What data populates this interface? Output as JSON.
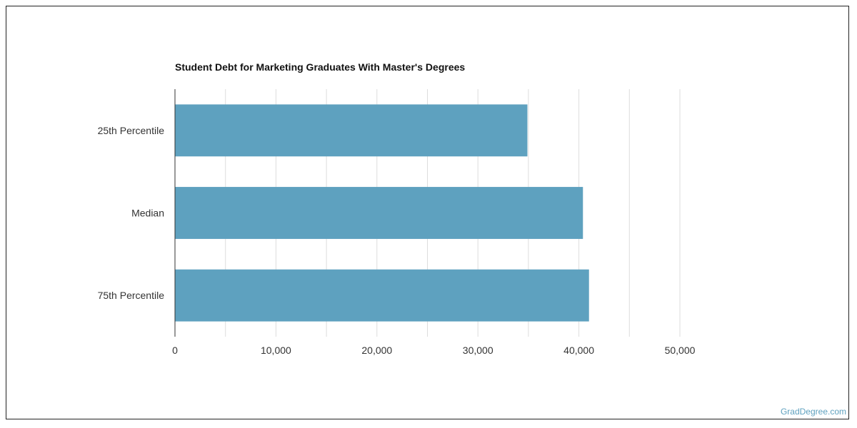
{
  "chart_data": {
    "type": "bar",
    "orientation": "horizontal",
    "title": "Student Debt for Marketing Graduates With Master's Degrees",
    "categories": [
      "25th Percentile",
      "Median",
      "75th Percentile"
    ],
    "values": [
      34900,
      40400,
      41000
    ],
    "xlim": [
      0,
      50000
    ],
    "xticks": [
      0,
      10000,
      20000,
      30000,
      40000,
      50000
    ],
    "xtick_labels": [
      "0",
      "10,000",
      "20,000",
      "30,000",
      "40,000",
      "50,000"
    ],
    "grid": true,
    "bar_color": "#5ea1bf"
  },
  "watermark": "GradDegree.com"
}
